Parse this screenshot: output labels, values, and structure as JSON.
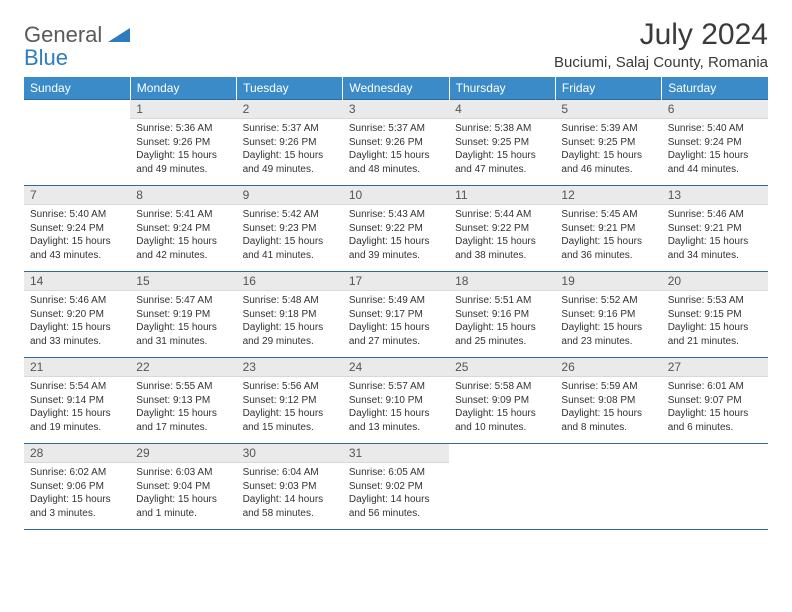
{
  "logo": {
    "gray": "General",
    "blue": "Blue"
  },
  "title": "July 2024",
  "location": "Buciumi, Salaj County, Romania",
  "dow": [
    "Sunday",
    "Monday",
    "Tuesday",
    "Wednesday",
    "Thursday",
    "Friday",
    "Saturday"
  ],
  "colors": {
    "header_bg": "#3b8bc8",
    "header_text": "#ffffff",
    "daynum_bg": "#eaeaea",
    "border": "#2e6aa0",
    "logo_gray": "#5a5a5a",
    "logo_blue": "#2e7cc0"
  },
  "weeks": [
    [
      {
        "n": "",
        "sr": "",
        "ss": "",
        "dl": "",
        "empty": true
      },
      {
        "n": "1",
        "sr": "Sunrise: 5:36 AM",
        "ss": "Sunset: 9:26 PM",
        "dl": "Daylight: 15 hours and 49 minutes."
      },
      {
        "n": "2",
        "sr": "Sunrise: 5:37 AM",
        "ss": "Sunset: 9:26 PM",
        "dl": "Daylight: 15 hours and 49 minutes."
      },
      {
        "n": "3",
        "sr": "Sunrise: 5:37 AM",
        "ss": "Sunset: 9:26 PM",
        "dl": "Daylight: 15 hours and 48 minutes."
      },
      {
        "n": "4",
        "sr": "Sunrise: 5:38 AM",
        "ss": "Sunset: 9:25 PM",
        "dl": "Daylight: 15 hours and 47 minutes."
      },
      {
        "n": "5",
        "sr": "Sunrise: 5:39 AM",
        "ss": "Sunset: 9:25 PM",
        "dl": "Daylight: 15 hours and 46 minutes."
      },
      {
        "n": "6",
        "sr": "Sunrise: 5:40 AM",
        "ss": "Sunset: 9:24 PM",
        "dl": "Daylight: 15 hours and 44 minutes."
      }
    ],
    [
      {
        "n": "7",
        "sr": "Sunrise: 5:40 AM",
        "ss": "Sunset: 9:24 PM",
        "dl": "Daylight: 15 hours and 43 minutes."
      },
      {
        "n": "8",
        "sr": "Sunrise: 5:41 AM",
        "ss": "Sunset: 9:24 PM",
        "dl": "Daylight: 15 hours and 42 minutes."
      },
      {
        "n": "9",
        "sr": "Sunrise: 5:42 AM",
        "ss": "Sunset: 9:23 PM",
        "dl": "Daylight: 15 hours and 41 minutes."
      },
      {
        "n": "10",
        "sr": "Sunrise: 5:43 AM",
        "ss": "Sunset: 9:22 PM",
        "dl": "Daylight: 15 hours and 39 minutes."
      },
      {
        "n": "11",
        "sr": "Sunrise: 5:44 AM",
        "ss": "Sunset: 9:22 PM",
        "dl": "Daylight: 15 hours and 38 minutes."
      },
      {
        "n": "12",
        "sr": "Sunrise: 5:45 AM",
        "ss": "Sunset: 9:21 PM",
        "dl": "Daylight: 15 hours and 36 minutes."
      },
      {
        "n": "13",
        "sr": "Sunrise: 5:46 AM",
        "ss": "Sunset: 9:21 PM",
        "dl": "Daylight: 15 hours and 34 minutes."
      }
    ],
    [
      {
        "n": "14",
        "sr": "Sunrise: 5:46 AM",
        "ss": "Sunset: 9:20 PM",
        "dl": "Daylight: 15 hours and 33 minutes."
      },
      {
        "n": "15",
        "sr": "Sunrise: 5:47 AM",
        "ss": "Sunset: 9:19 PM",
        "dl": "Daylight: 15 hours and 31 minutes."
      },
      {
        "n": "16",
        "sr": "Sunrise: 5:48 AM",
        "ss": "Sunset: 9:18 PM",
        "dl": "Daylight: 15 hours and 29 minutes."
      },
      {
        "n": "17",
        "sr": "Sunrise: 5:49 AM",
        "ss": "Sunset: 9:17 PM",
        "dl": "Daylight: 15 hours and 27 minutes."
      },
      {
        "n": "18",
        "sr": "Sunrise: 5:51 AM",
        "ss": "Sunset: 9:16 PM",
        "dl": "Daylight: 15 hours and 25 minutes."
      },
      {
        "n": "19",
        "sr": "Sunrise: 5:52 AM",
        "ss": "Sunset: 9:16 PM",
        "dl": "Daylight: 15 hours and 23 minutes."
      },
      {
        "n": "20",
        "sr": "Sunrise: 5:53 AM",
        "ss": "Sunset: 9:15 PM",
        "dl": "Daylight: 15 hours and 21 minutes."
      }
    ],
    [
      {
        "n": "21",
        "sr": "Sunrise: 5:54 AM",
        "ss": "Sunset: 9:14 PM",
        "dl": "Daylight: 15 hours and 19 minutes."
      },
      {
        "n": "22",
        "sr": "Sunrise: 5:55 AM",
        "ss": "Sunset: 9:13 PM",
        "dl": "Daylight: 15 hours and 17 minutes."
      },
      {
        "n": "23",
        "sr": "Sunrise: 5:56 AM",
        "ss": "Sunset: 9:12 PM",
        "dl": "Daylight: 15 hours and 15 minutes."
      },
      {
        "n": "24",
        "sr": "Sunrise: 5:57 AM",
        "ss": "Sunset: 9:10 PM",
        "dl": "Daylight: 15 hours and 13 minutes."
      },
      {
        "n": "25",
        "sr": "Sunrise: 5:58 AM",
        "ss": "Sunset: 9:09 PM",
        "dl": "Daylight: 15 hours and 10 minutes."
      },
      {
        "n": "26",
        "sr": "Sunrise: 5:59 AM",
        "ss": "Sunset: 9:08 PM",
        "dl": "Daylight: 15 hours and 8 minutes."
      },
      {
        "n": "27",
        "sr": "Sunrise: 6:01 AM",
        "ss": "Sunset: 9:07 PM",
        "dl": "Daylight: 15 hours and 6 minutes."
      }
    ],
    [
      {
        "n": "28",
        "sr": "Sunrise: 6:02 AM",
        "ss": "Sunset: 9:06 PM",
        "dl": "Daylight: 15 hours and 3 minutes."
      },
      {
        "n": "29",
        "sr": "Sunrise: 6:03 AM",
        "ss": "Sunset: 9:04 PM",
        "dl": "Daylight: 15 hours and 1 minute."
      },
      {
        "n": "30",
        "sr": "Sunrise: 6:04 AM",
        "ss": "Sunset: 9:03 PM",
        "dl": "Daylight: 14 hours and 58 minutes."
      },
      {
        "n": "31",
        "sr": "Sunrise: 6:05 AM",
        "ss": "Sunset: 9:02 PM",
        "dl": "Daylight: 14 hours and 56 minutes."
      },
      {
        "n": "",
        "sr": "",
        "ss": "",
        "dl": "",
        "empty": true
      },
      {
        "n": "",
        "sr": "",
        "ss": "",
        "dl": "",
        "empty": true
      },
      {
        "n": "",
        "sr": "",
        "ss": "",
        "dl": "",
        "empty": true
      }
    ]
  ]
}
